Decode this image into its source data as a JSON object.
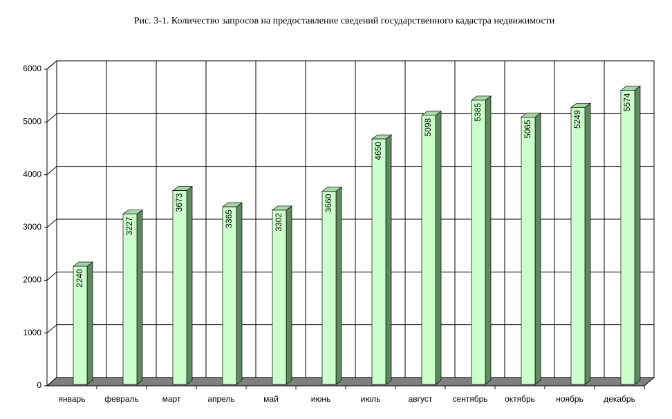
{
  "chart_data": {
    "type": "bar",
    "title": "Рис. 3-1. Количество запросов на предоставление сведений государственного кадастра недвижимости",
    "categories": [
      "январь",
      "февраль",
      "март",
      "апрель",
      "май",
      "июнь",
      "июль",
      "август",
      "сентябрь",
      "октябрь",
      "ноябрь",
      "декабрь"
    ],
    "values": [
      2240,
      3227,
      3673,
      3365,
      3302,
      3660,
      4650,
      5098,
      5385,
      5065,
      5249,
      5574
    ],
    "color": "#ccffcc",
    "ylim": [
      0,
      6000
    ],
    "yticks": [
      0,
      1000,
      2000,
      3000,
      4000,
      5000,
      6000
    ],
    "grid": true
  }
}
